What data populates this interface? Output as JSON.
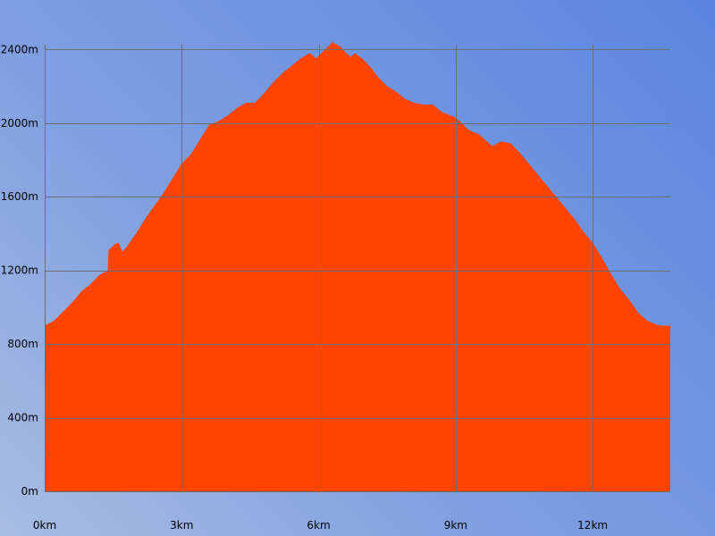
{
  "chart_data": {
    "type": "area",
    "title": "",
    "xlabel": "",
    "ylabel": "",
    "x_unit": "km",
    "y_unit": "m",
    "xlim": [
      0,
      13.7
    ],
    "ylim": [
      0,
      2450
    ],
    "grid": true,
    "legend": "none",
    "x_ticks": [
      {
        "value": 0,
        "label": "0km"
      },
      {
        "value": 3,
        "label": "3km"
      },
      {
        "value": 6,
        "label": "6km"
      },
      {
        "value": 9,
        "label": "9km"
      },
      {
        "value": 12,
        "label": "12km"
      }
    ],
    "y_ticks": [
      {
        "value": 0,
        "label": "0m"
      },
      {
        "value": 400,
        "label": "400m"
      },
      {
        "value": 800,
        "label": "800m"
      },
      {
        "value": 1200,
        "label": "1200m"
      },
      {
        "value": 1600,
        "label": "1600m"
      },
      {
        "value": 2000,
        "label": "2000m"
      },
      {
        "value": 2400,
        "label": "2400m"
      }
    ],
    "series": [
      {
        "color": "#ff4400",
        "x": [
          0,
          0.2,
          0.4,
          0.6,
          0.8,
          1.0,
          1.2,
          1.38,
          1.4,
          1.55,
          1.62,
          1.7,
          1.8,
          2.0,
          2.2,
          2.4,
          2.6,
          2.8,
          3.0,
          3.2,
          3.4,
          3.6,
          3.8,
          4.0,
          4.2,
          4.4,
          4.5,
          4.6,
          4.8,
          5.0,
          5.2,
          5.4,
          5.6,
          5.8,
          5.95,
          6.1,
          6.3,
          6.5,
          6.6,
          6.7,
          6.8,
          7.0,
          7.15,
          7.3,
          7.5,
          7.7,
          7.9,
          8.1,
          8.3,
          8.5,
          8.7,
          9.0,
          9.3,
          9.5,
          9.8,
          10.0,
          10.2,
          10.4,
          10.6,
          10.8,
          11.0,
          11.2,
          11.4,
          11.6,
          11.8,
          12.0,
          12.2,
          12.4,
          12.6,
          12.8,
          13.0,
          13.2,
          13.4,
          13.5,
          13.7
        ],
        "y": [
          900,
          925,
          975,
          1025,
          1085,
          1125,
          1175,
          1200,
          1310,
          1345,
          1350,
          1300,
          1330,
          1400,
          1480,
          1550,
          1620,
          1700,
          1780,
          1830,
          1910,
          1990,
          2010,
          2040,
          2080,
          2110,
          2110,
          2110,
          2160,
          2220,
          2270,
          2310,
          2350,
          2380,
          2350,
          2390,
          2440,
          2410,
          2380,
          2360,
          2380,
          2340,
          2300,
          2250,
          2200,
          2170,
          2130,
          2110,
          2100,
          2100,
          2060,
          2030,
          1960,
          1940,
          1875,
          1900,
          1890,
          1840,
          1780,
          1720,
          1660,
          1600,
          1540,
          1480,
          1410,
          1350,
          1270,
          1180,
          1100,
          1040,
          970,
          925,
          905,
          900,
          900
        ]
      }
    ]
  }
}
